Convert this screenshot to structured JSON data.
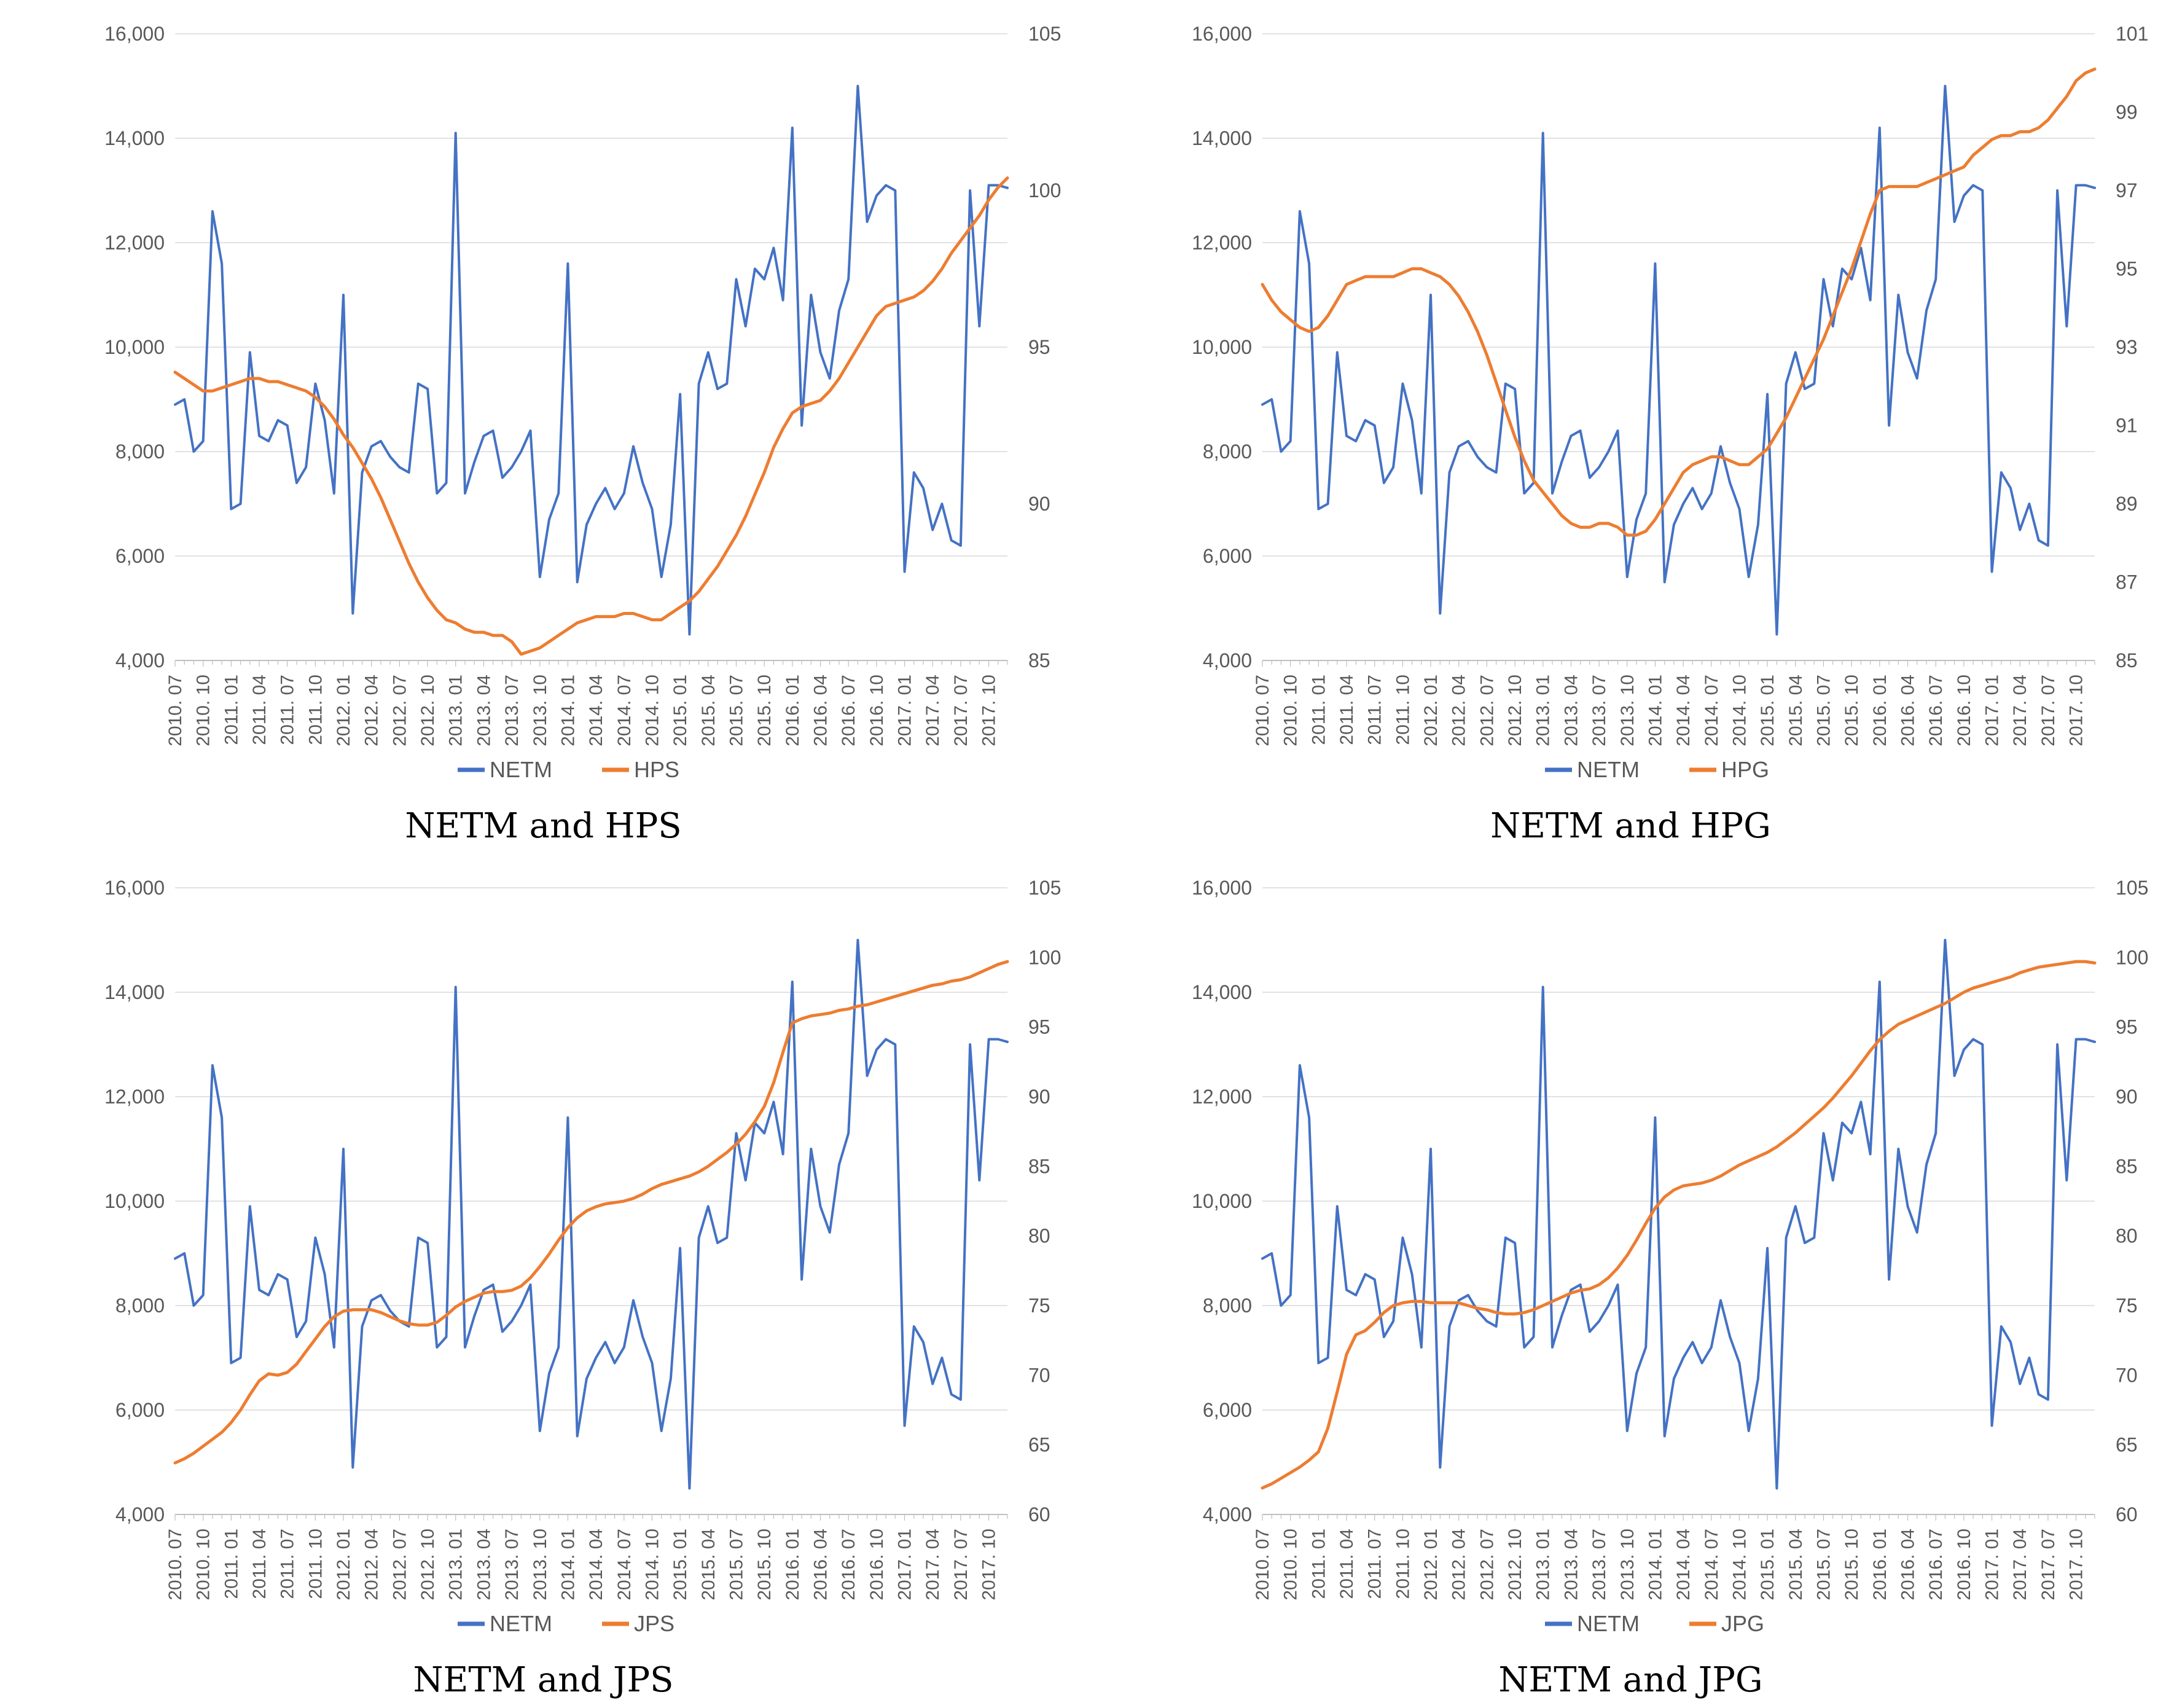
{
  "colors": {
    "netm": "#4472C4",
    "index": "#ED7D31",
    "grid": "#D9D9D9",
    "axis_line": "#BFBFBF",
    "axis_text": "#595959",
    "legend_text": "#595959",
    "title_text": "#000000"
  },
  "chart_data": [
    {
      "type": "line",
      "title": "NETM and HPS",
      "legend_position": "bottom",
      "grid": "horizontal",
      "x_tick_labels": [
        "2010. 07",
        "2010. 10",
        "2011. 01",
        "2011. 04",
        "2011. 07",
        "2011. 10",
        "2012. 01",
        "2012. 04",
        "2012. 07",
        "2012. 10",
        "2013. 01",
        "2013. 04",
        "2013. 07",
        "2013. 10",
        "2014. 01",
        "2014. 04",
        "2014. 07",
        "2014. 10",
        "2015. 01",
        "2015. 04",
        "2015. 07",
        "2015. 10",
        "2016. 01",
        "2016. 04",
        "2016. 07",
        "2016. 10",
        "2017. 01",
        "2017. 04",
        "2017. 07",
        "2017. 10"
      ],
      "left_axis": {
        "min": 4000,
        "max": 16000,
        "labels": [
          "16,000",
          "14,000",
          "12,000",
          "10,000",
          "8,000",
          "6,000",
          "4,000"
        ]
      },
      "right_axis": {
        "min": 85,
        "max": 105,
        "labels": [
          "105",
          "100",
          "95",
          "90",
          "85"
        ]
      },
      "series": [
        {
          "name": "NETM",
          "axis": "left",
          "color_key": "netm",
          "values": [
            8900,
            9000,
            8000,
            8200,
            12600,
            11600,
            6900,
            7000,
            9900,
            8300,
            8200,
            8600,
            8500,
            7400,
            7700,
            9300,
            8600,
            7200,
            11000,
            4900,
            7600,
            8100,
            8200,
            7900,
            7700,
            7600,
            9300,
            9200,
            7200,
            7400,
            14100,
            7200,
            7800,
            8300,
            8400,
            7500,
            7700,
            8000,
            8400,
            5600,
            6700,
            7200,
            11600,
            5500,
            6600,
            7000,
            7300,
            6900,
            7200,
            8100,
            7400,
            6900,
            5600,
            6600,
            9100,
            4500,
            9300,
            9900,
            9200,
            9300,
            11300,
            10400,
            11500,
            11300,
            11900,
            10900,
            14200,
            8500,
            11000,
            9900,
            9400,
            10700,
            11300,
            15000,
            12400,
            12900,
            13100,
            13000,
            5700,
            7600,
            7300,
            6500,
            7000,
            6300,
            6200,
            13000,
            10400,
            13100,
            13100,
            13050
          ]
        },
        {
          "name": "HPS",
          "axis": "right",
          "color_key": "index",
          "values": [
            94.2,
            94.0,
            93.8,
            93.6,
            93.6,
            93.7,
            93.8,
            93.9,
            94.0,
            94.0,
            93.9,
            93.9,
            93.8,
            93.7,
            93.6,
            93.4,
            93.1,
            92.7,
            92.2,
            91.8,
            91.3,
            90.8,
            90.2,
            89.5,
            88.8,
            88.1,
            87.5,
            87.0,
            86.6,
            86.3,
            86.2,
            86.0,
            85.9,
            85.9,
            85.8,
            85.8,
            85.6,
            85.2,
            85.3,
            85.4,
            85.6,
            85.8,
            86.0,
            86.2,
            86.3,
            86.4,
            86.4,
            86.4,
            86.5,
            86.5,
            86.4,
            86.3,
            86.3,
            86.5,
            86.7,
            86.9,
            87.2,
            87.6,
            88.0,
            88.5,
            89.0,
            89.6,
            90.3,
            91.0,
            91.8,
            92.4,
            92.9,
            93.1,
            93.2,
            93.3,
            93.6,
            94.0,
            94.5,
            95.0,
            95.5,
            96.0,
            96.3,
            96.4,
            96.5,
            96.6,
            96.8,
            97.1,
            97.5,
            98.0,
            98.4,
            98.8,
            99.2,
            99.7,
            100.1,
            100.4
          ]
        }
      ]
    },
    {
      "type": "line",
      "title": "NETM and HPG",
      "legend_position": "bottom",
      "grid": "horizontal",
      "x_tick_labels": [
        "2010. 07",
        "2010. 10",
        "2011. 01",
        "2011. 04",
        "2011. 07",
        "2011. 10",
        "2012. 01",
        "2012. 04",
        "2012. 07",
        "2012. 10",
        "2013. 01",
        "2013. 04",
        "2013. 07",
        "2013. 10",
        "2014. 01",
        "2014. 04",
        "2014. 07",
        "2014. 10",
        "2015. 01",
        "2015. 04",
        "2015. 07",
        "2015. 10",
        "2016. 01",
        "2016. 04",
        "2016. 07",
        "2016. 10",
        "2017. 01",
        "2017. 04",
        "2017. 07",
        "2017. 10"
      ],
      "left_axis": {
        "min": 4000,
        "max": 16000,
        "labels": [
          "16,000",
          "14,000",
          "12,000",
          "10,000",
          "8,000",
          "6,000",
          "4,000"
        ]
      },
      "right_axis": {
        "min": 85,
        "max": 101,
        "labels": [
          "101",
          "99",
          "97",
          "95",
          "93",
          "91",
          "89",
          "87",
          "85"
        ]
      },
      "series": [
        {
          "name": "NETM",
          "axis": "left",
          "color_key": "netm",
          "values": [
            8900,
            9000,
            8000,
            8200,
            12600,
            11600,
            6900,
            7000,
            9900,
            8300,
            8200,
            8600,
            8500,
            7400,
            7700,
            9300,
            8600,
            7200,
            11000,
            4900,
            7600,
            8100,
            8200,
            7900,
            7700,
            7600,
            9300,
            9200,
            7200,
            7400,
            14100,
            7200,
            7800,
            8300,
            8400,
            7500,
            7700,
            8000,
            8400,
            5600,
            6700,
            7200,
            11600,
            5500,
            6600,
            7000,
            7300,
            6900,
            7200,
            8100,
            7400,
            6900,
            5600,
            6600,
            9100,
            4500,
            9300,
            9900,
            9200,
            9300,
            11300,
            10400,
            11500,
            11300,
            11900,
            10900,
            14200,
            8500,
            11000,
            9900,
            9400,
            10700,
            11300,
            15000,
            12400,
            12900,
            13100,
            13000,
            5700,
            7600,
            7300,
            6500,
            7000,
            6300,
            6200,
            13000,
            10400,
            13100,
            13100,
            13050
          ]
        },
        {
          "name": "HPG",
          "axis": "right",
          "color_key": "index",
          "values": [
            94.6,
            94.2,
            93.9,
            93.7,
            93.5,
            93.4,
            93.5,
            93.8,
            94.2,
            94.6,
            94.7,
            94.8,
            94.8,
            94.8,
            94.8,
            94.9,
            95.0,
            95.0,
            94.9,
            94.8,
            94.6,
            94.3,
            93.9,
            93.4,
            92.8,
            92.1,
            91.4,
            90.7,
            90.1,
            89.6,
            89.3,
            89.0,
            88.7,
            88.5,
            88.4,
            88.4,
            88.5,
            88.5,
            88.4,
            88.2,
            88.2,
            88.3,
            88.6,
            89.0,
            89.4,
            89.8,
            90.0,
            90.1,
            90.2,
            90.2,
            90.1,
            90.0,
            90.0,
            90.2,
            90.4,
            90.8,
            91.2,
            91.7,
            92.2,
            92.7,
            93.2,
            93.8,
            94.4,
            95.0,
            95.7,
            96.4,
            97.0,
            97.1,
            97.1,
            97.1,
            97.1,
            97.2,
            97.3,
            97.4,
            97.5,
            97.6,
            97.9,
            98.1,
            98.3,
            98.4,
            98.4,
            98.5,
            98.5,
            98.6,
            98.8,
            99.1,
            99.4,
            99.8,
            100.0,
            100.1
          ]
        }
      ]
    },
    {
      "type": "line",
      "title": "NETM and JPS",
      "legend_position": "bottom",
      "grid": "horizontal",
      "x_tick_labels": [
        "2010. 07",
        "2010. 10",
        "2011. 01",
        "2011. 04",
        "2011. 07",
        "2011. 10",
        "2012. 01",
        "2012. 04",
        "2012. 07",
        "2012. 10",
        "2013. 01",
        "2013. 04",
        "2013. 07",
        "2013. 10",
        "2014. 01",
        "2014. 04",
        "2014. 07",
        "2014. 10",
        "2015. 01",
        "2015. 04",
        "2015. 07",
        "2015. 10",
        "2016. 01",
        "2016. 04",
        "2016. 07",
        "2016. 10",
        "2017. 01",
        "2017. 04",
        "2017. 07",
        "2017. 10"
      ],
      "left_axis": {
        "min": 4000,
        "max": 16000,
        "labels": [
          "16,000",
          "14,000",
          "12,000",
          "10,000",
          "8,000",
          "6,000",
          "4,000"
        ]
      },
      "right_axis": {
        "min": 60,
        "max": 105,
        "labels": [
          "105",
          "100",
          "95",
          "90",
          "85",
          "80",
          "75",
          "70",
          "65",
          "60"
        ]
      },
      "series": [
        {
          "name": "NETM",
          "axis": "left",
          "color_key": "netm",
          "values": [
            8900,
            9000,
            8000,
            8200,
            12600,
            11600,
            6900,
            7000,
            9900,
            8300,
            8200,
            8600,
            8500,
            7400,
            7700,
            9300,
            8600,
            7200,
            11000,
            4900,
            7600,
            8100,
            8200,
            7900,
            7700,
            7600,
            9300,
            9200,
            7200,
            7400,
            14100,
            7200,
            7800,
            8300,
            8400,
            7500,
            7700,
            8000,
            8400,
            5600,
            6700,
            7200,
            11600,
            5500,
            6600,
            7000,
            7300,
            6900,
            7200,
            8100,
            7400,
            6900,
            5600,
            6600,
            9100,
            4500,
            9300,
            9900,
            9200,
            9300,
            11300,
            10400,
            11500,
            11300,
            11900,
            10900,
            14200,
            8500,
            11000,
            9900,
            9400,
            10700,
            11300,
            15000,
            12400,
            12900,
            13100,
            13000,
            5700,
            7600,
            7300,
            6500,
            7000,
            6300,
            6200,
            13000,
            10400,
            13100,
            13100,
            13050
          ]
        },
        {
          "name": "JPS",
          "axis": "right",
          "color_key": "index",
          "values": [
            63.7,
            64.0,
            64.4,
            64.9,
            65.4,
            65.9,
            66.6,
            67.5,
            68.6,
            69.6,
            70.1,
            70.0,
            70.2,
            70.8,
            71.7,
            72.6,
            73.5,
            74.2,
            74.6,
            74.7,
            74.7,
            74.7,
            74.5,
            74.2,
            73.9,
            73.7,
            73.6,
            73.6,
            73.8,
            74.3,
            74.9,
            75.3,
            75.6,
            75.9,
            76.0,
            76.0,
            76.1,
            76.4,
            77.0,
            77.8,
            78.7,
            79.7,
            80.6,
            81.3,
            81.8,
            82.1,
            82.3,
            82.4,
            82.5,
            82.7,
            83.0,
            83.4,
            83.7,
            83.9,
            84.1,
            84.3,
            84.6,
            85.0,
            85.5,
            86.0,
            86.6,
            87.3,
            88.2,
            89.3,
            91.0,
            93.2,
            95.3,
            95.6,
            95.8,
            95.9,
            96.0,
            96.2,
            96.3,
            96.5,
            96.6,
            96.8,
            97.0,
            97.2,
            97.4,
            97.6,
            97.8,
            98.0,
            98.1,
            98.3,
            98.4,
            98.6,
            98.9,
            99.2,
            99.5,
            99.7
          ]
        }
      ]
    },
    {
      "type": "line",
      "title": "NETM and JPG",
      "legend_position": "bottom",
      "grid": "horizontal",
      "x_tick_labels": [
        "2010. 07",
        "2010. 10",
        "2011. 01",
        "2011. 04",
        "2011. 07",
        "2011. 10",
        "2012. 01",
        "2012. 04",
        "2012. 07",
        "2012. 10",
        "2013. 01",
        "2013. 04",
        "2013. 07",
        "2013. 10",
        "2014. 01",
        "2014. 04",
        "2014. 07",
        "2014. 10",
        "2015. 01",
        "2015. 04",
        "2015. 07",
        "2015. 10",
        "2016. 01",
        "2016. 04",
        "2016. 07",
        "2016. 10",
        "2017. 01",
        "2017. 04",
        "2017. 07",
        "2017. 10"
      ],
      "left_axis": {
        "min": 4000,
        "max": 16000,
        "labels": [
          "16,000",
          "14,000",
          "12,000",
          "10,000",
          "8,000",
          "6,000",
          "4,000"
        ]
      },
      "right_axis": {
        "min": 60,
        "max": 105,
        "labels": [
          "105",
          "100",
          "95",
          "90",
          "85",
          "80",
          "75",
          "70",
          "65",
          "60"
        ]
      },
      "series": [
        {
          "name": "NETM",
          "axis": "left",
          "color_key": "netm",
          "values": [
            8900,
            9000,
            8000,
            8200,
            12600,
            11600,
            6900,
            7000,
            9900,
            8300,
            8200,
            8600,
            8500,
            7400,
            7700,
            9300,
            8600,
            7200,
            11000,
            4900,
            7600,
            8100,
            8200,
            7900,
            7700,
            7600,
            9300,
            9200,
            7200,
            7400,
            14100,
            7200,
            7800,
            8300,
            8400,
            7500,
            7700,
            8000,
            8400,
            5600,
            6700,
            7200,
            11600,
            5500,
            6600,
            7000,
            7300,
            6900,
            7200,
            8100,
            7400,
            6900,
            5600,
            6600,
            9100,
            4500,
            9300,
            9900,
            9200,
            9300,
            11300,
            10400,
            11500,
            11300,
            11900,
            10900,
            14200,
            8500,
            11000,
            9900,
            9400,
            10700,
            11300,
            15000,
            12400,
            12900,
            13100,
            13000,
            5700,
            7600,
            7300,
            6500,
            7000,
            6300,
            6200,
            13000,
            10400,
            13100,
            13100,
            13050
          ]
        },
        {
          "name": "JPG",
          "axis": "right",
          "color_key": "index",
          "values": [
            61.9,
            62.2,
            62.6,
            63.0,
            63.4,
            63.9,
            64.5,
            66.2,
            68.8,
            71.5,
            72.9,
            73.2,
            73.8,
            74.5,
            75.0,
            75.2,
            75.3,
            75.3,
            75.2,
            75.2,
            75.2,
            75.2,
            75.0,
            74.8,
            74.7,
            74.5,
            74.4,
            74.4,
            74.5,
            74.7,
            75.0,
            75.3,
            75.6,
            75.9,
            76.1,
            76.2,
            76.5,
            77.0,
            77.7,
            78.6,
            79.7,
            80.9,
            82.0,
            82.8,
            83.3,
            83.6,
            83.7,
            83.8,
            84.0,
            84.3,
            84.7,
            85.1,
            85.4,
            85.7,
            86.0,
            86.4,
            86.9,
            87.4,
            88.0,
            88.6,
            89.2,
            89.9,
            90.7,
            91.5,
            92.4,
            93.3,
            94.1,
            94.7,
            95.2,
            95.5,
            95.8,
            96.1,
            96.4,
            96.7,
            97.1,
            97.5,
            97.8,
            98.0,
            98.2,
            98.4,
            98.6,
            98.9,
            99.1,
            99.3,
            99.4,
            99.5,
            99.6,
            99.7,
            99.7,
            99.6
          ]
        }
      ]
    }
  ]
}
